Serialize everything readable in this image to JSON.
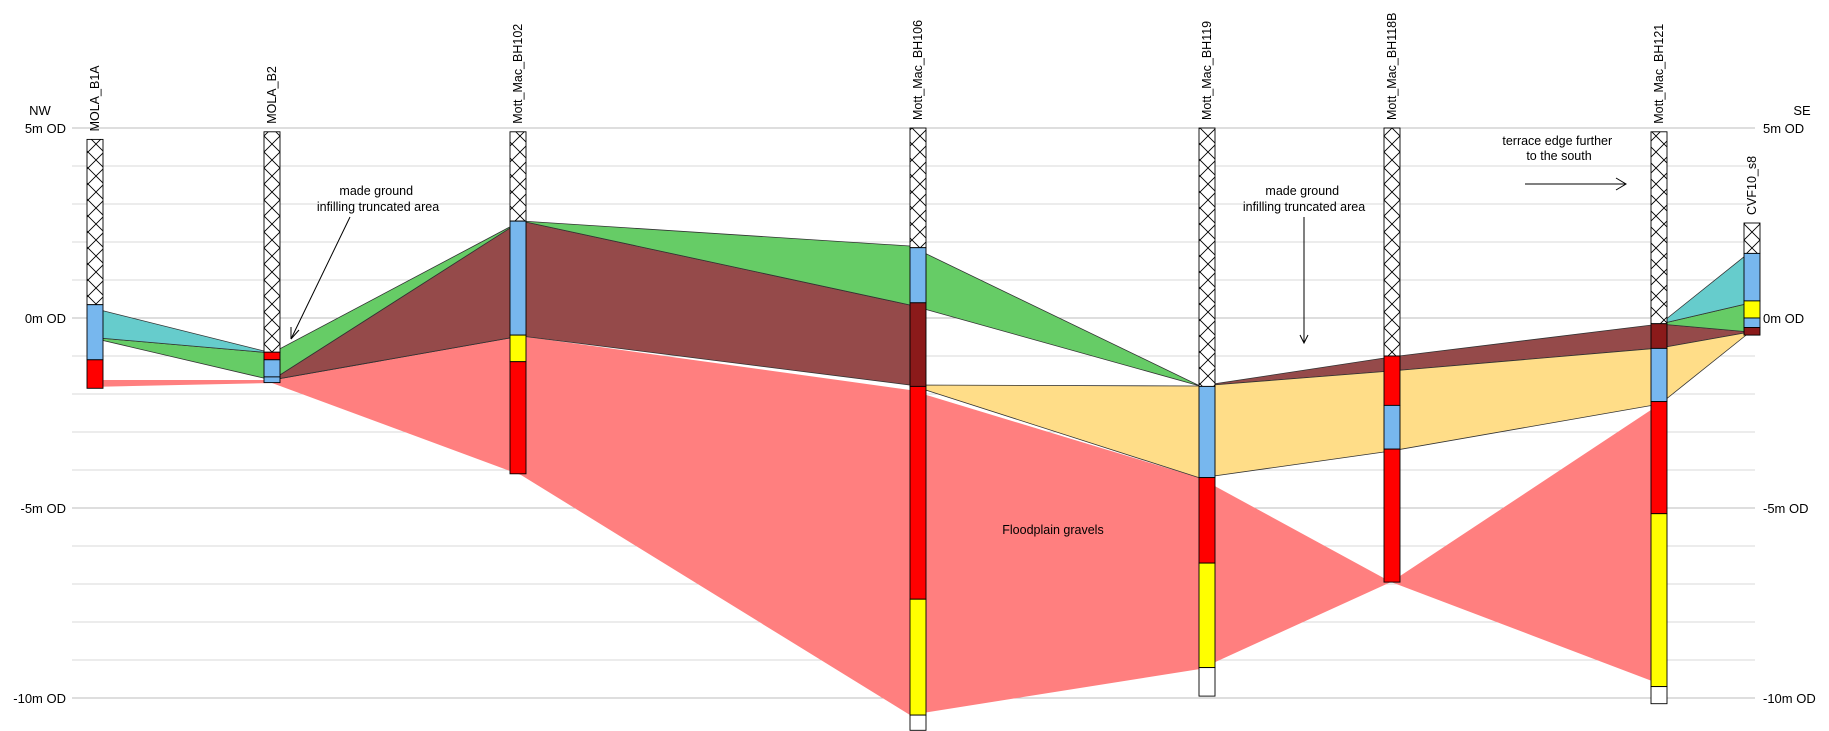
{
  "direction": {
    "left": "NW",
    "right": "SE"
  },
  "elevation_labels": [
    {
      "value": 5,
      "text": "5m OD"
    },
    {
      "value": 0,
      "text": "0m OD"
    },
    {
      "value": -5,
      "text": "-5m OD"
    },
    {
      "value": -10,
      "text": "-10m OD"
    }
  ],
  "grid": {
    "minor_interval_m": 1,
    "from": -10,
    "to": 5
  },
  "units_colors": {
    "made_ground": "#ffffff",
    "floodplain": "#ff7f7f",
    "gravel_dark": "#ff0000",
    "alluvium": "#954a4a",
    "peat": "#66cc66",
    "clay": "#66cccc",
    "silt": "#ffdd88",
    "sand": "#ffff00",
    "sandy_clay": "#77b7ee"
  },
  "boreholes": [
    {
      "name": "MOLA_B1A",
      "intervals": [
        [
          4.7,
          0.35,
          "made"
        ],
        [
          0.35,
          -1.1,
          "sandy"
        ],
        [
          -1.1,
          -1.85,
          "red"
        ]
      ]
    },
    {
      "name": "MOLA_B2",
      "intervals": [
        [
          4.9,
          -0.9,
          "made"
        ],
        [
          -0.9,
          -1.1,
          "red"
        ],
        [
          -1.1,
          -1.55,
          "sandy"
        ],
        [
          -1.55,
          -1.7,
          "sandy"
        ]
      ]
    },
    {
      "name": "Mott_Mac_BH102",
      "intervals": [
        [
          4.9,
          2.55,
          "made"
        ],
        [
          2.55,
          -0.45,
          "sandy"
        ],
        [
          -0.45,
          -1.15,
          "sand"
        ],
        [
          -1.15,
          -4.1,
          "red"
        ]
      ]
    },
    {
      "name": "Mott_Mac_BH106",
      "intervals": [
        [
          5.0,
          1.85,
          "made"
        ],
        [
          1.85,
          0.4,
          "sandy"
        ],
        [
          0.4,
          -1.8,
          "alluvium"
        ],
        [
          -1.8,
          -7.4,
          "red"
        ],
        [
          -7.4,
          -10.45,
          "sand"
        ],
        [
          -10.45,
          -10.85,
          "blank"
        ]
      ]
    },
    {
      "name": "Mott_Mac_BH119",
      "intervals": [
        [
          5.0,
          -1.8,
          "made"
        ],
        [
          -1.8,
          -4.2,
          "sandy"
        ],
        [
          -4.2,
          -6.45,
          "red"
        ],
        [
          -6.45,
          -9.2,
          "sand"
        ],
        [
          -9.2,
          -9.95,
          "blank"
        ]
      ]
    },
    {
      "name": "Mott_Mac_BH118B",
      "intervals": [
        [
          5.0,
          -1.0,
          "made"
        ],
        [
          -1.0,
          -2.3,
          "red"
        ],
        [
          -2.3,
          -3.45,
          "sandy"
        ],
        [
          -3.45,
          -6.95,
          "red"
        ]
      ]
    },
    {
      "name": "Mott_Mac_BH121",
      "intervals": [
        [
          4.9,
          -0.15,
          "made"
        ],
        [
          -0.15,
          -0.8,
          "alluvium"
        ],
        [
          -0.8,
          -2.2,
          "sandy"
        ],
        [
          -2.2,
          -5.15,
          "red"
        ],
        [
          -5.15,
          -9.7,
          "sand"
        ],
        [
          -9.7,
          -10.15,
          "blank"
        ]
      ]
    },
    {
      "name": "CVF10_s8",
      "intervals": [
        [
          2.5,
          1.7,
          "made"
        ],
        [
          1.7,
          0.45,
          "sandy"
        ],
        [
          0.45,
          0.0,
          "sand"
        ],
        [
          0.0,
          -0.25,
          "sandy"
        ],
        [
          -0.25,
          -0.45,
          "alluvium"
        ]
      ]
    }
  ],
  "annotations": {
    "made_ground_1": [
      "made ground",
      "infilling truncated area"
    ],
    "made_ground_2": [
      "made ground",
      "infilling truncated area"
    ],
    "terrace_edge": [
      "terrace edge further",
      "to the south"
    ],
    "floodplain": "Floodplain gravels"
  }
}
